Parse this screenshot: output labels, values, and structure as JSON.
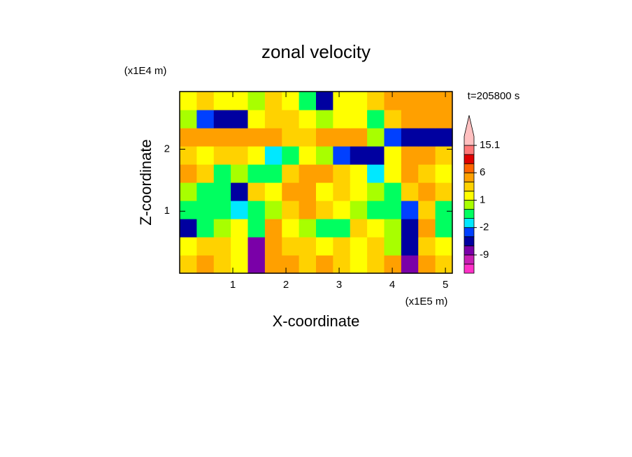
{
  "chart_data": {
    "type": "contour",
    "title": "zonal velocity",
    "x_label": "X-coordinate",
    "y_label": "Z-coordinate",
    "x_unit_label": "(x1E5 m)",
    "y_unit_label": "(x1E4 m)",
    "time_label": "t=205800 s",
    "xlim": [
      0,
      5.13
    ],
    "ylim": [
      0,
      2.93
    ],
    "xticks": [
      1,
      2,
      3,
      4,
      5
    ],
    "yticks": [
      1,
      2
    ],
    "z": [
      [
        2,
        3,
        2,
        1,
        -9,
        5,
        3,
        2,
        3,
        2,
        1,
        2,
        5,
        -7,
        4,
        2
      ],
      [
        1,
        2,
        2,
        1,
        -8,
        4,
        2,
        2,
        1,
        2,
        1,
        2,
        0,
        -6,
        2,
        1
      ],
      [
        -4,
        -1,
        0,
        1,
        -1,
        3,
        1,
        0,
        -1,
        -1,
        2,
        1,
        0,
        -5,
        3,
        -1
      ],
      [
        -1,
        -1,
        -1,
        -2,
        -1,
        0,
        2,
        3,
        2,
        1,
        0,
        -1,
        -1,
        -3,
        2,
        -1
      ],
      [
        0,
        -1,
        -1,
        -4,
        2,
        1,
        3,
        4,
        1,
        2,
        1,
        0,
        -1,
        2,
        3,
        2
      ],
      [
        5,
        2,
        -1,
        0,
        -1,
        -1,
        2,
        4,
        3,
        2,
        1,
        -2,
        1,
        3,
        2,
        1
      ],
      [
        2,
        1,
        2,
        2,
        1,
        -2,
        -1,
        1,
        0,
        -3,
        -4,
        -6,
        1,
        4,
        3,
        2
      ],
      [
        3,
        4,
        5,
        4,
        3,
        3,
        2,
        2,
        3,
        4,
        3,
        0,
        -3,
        -5,
        -6,
        -6
      ],
      [
        0,
        -3,
        -5,
        -4,
        1,
        2,
        2,
        1,
        0.5,
        1,
        1,
        -1,
        2,
        5,
        4,
        3
      ],
      [
        1,
        2,
        1.5,
        1,
        0.5,
        2,
        1,
        -0.5,
        -4,
        1,
        1,
        2,
        4,
        5,
        4,
        3
      ]
    ],
    "colorbar": {
      "levels": [
        -15,
        -12,
        -9,
        -6,
        -3,
        -2,
        -1,
        0,
        1,
        2,
        3,
        6,
        9,
        12,
        15.1,
        18
      ],
      "colors": [
        "#ff30c8",
        "#c81eb4",
        "#7a00a8",
        "#0000a0",
        "#0040ff",
        "#00e8ff",
        "#00ff60",
        "#a8ff00",
        "#ffff00",
        "#ffd200",
        "#ffa000",
        "#ff6400",
        "#e00000",
        "#ff7878",
        "#ffc0c0"
      ],
      "ticks": [
        15.1,
        6,
        1,
        -2,
        -9
      ]
    }
  }
}
